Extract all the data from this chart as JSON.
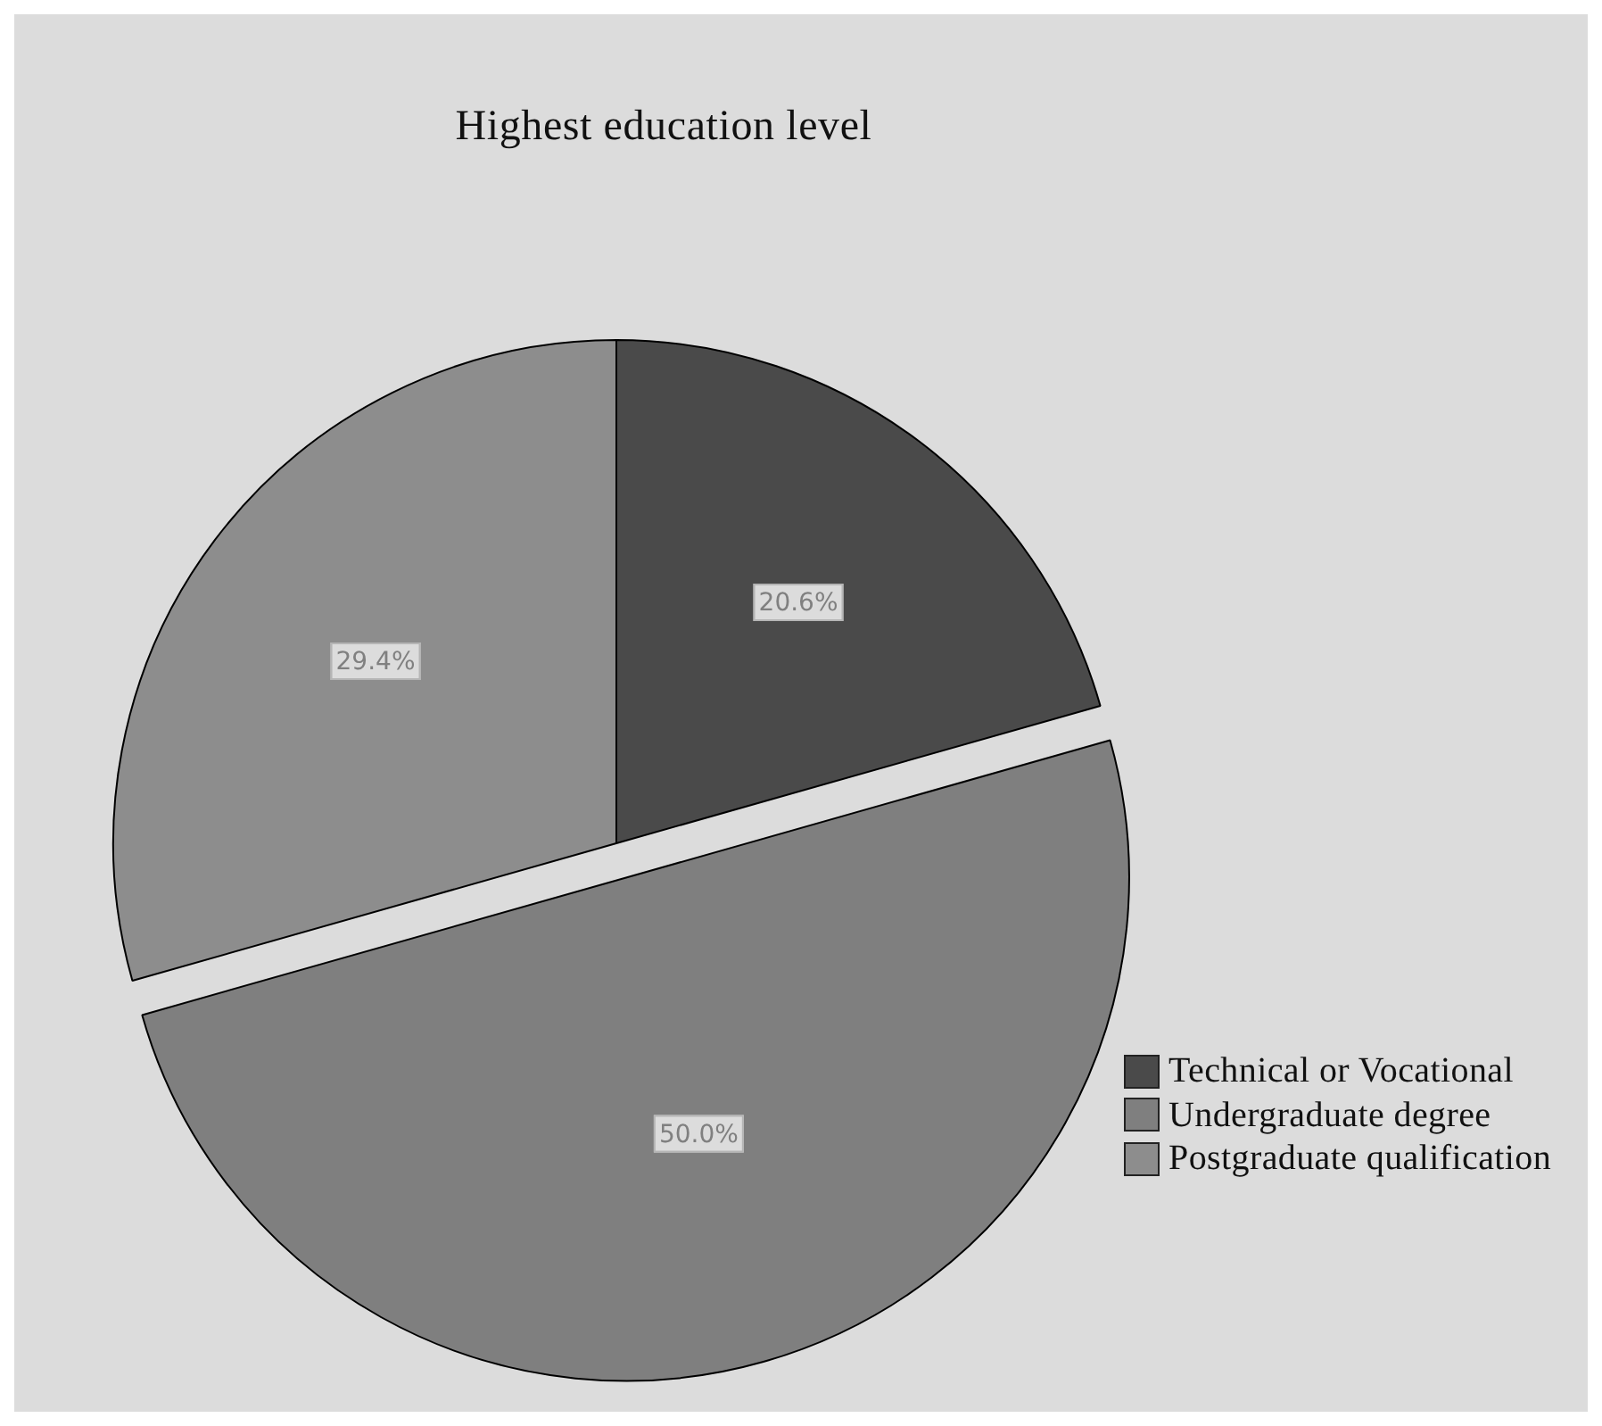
{
  "chart_data": {
    "type": "pie",
    "title": "Highest education level",
    "categories": [
      "Technical or Vocational",
      "Undergraduate degree",
      "Postgraduate qualification"
    ],
    "values": [
      20.6,
      50.0,
      29.4
    ],
    "colors": [
      "#4a4a4a",
      "#7f7f7f",
      "#8d8d8d"
    ],
    "value_labels": [
      "20.6%",
      "50.0%",
      "29.4%"
    ],
    "legend": "bottom right"
  }
}
